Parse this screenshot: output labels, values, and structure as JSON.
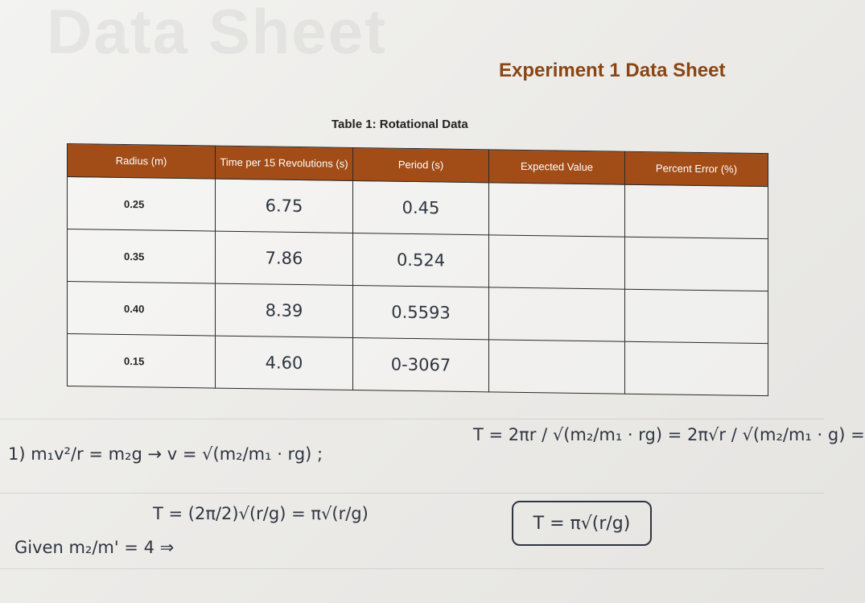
{
  "header": {
    "watermark": "Data Sheet",
    "title": "Experiment 1 Data Sheet"
  },
  "table": {
    "caption": "Table 1: Rotational Data",
    "headers": [
      "Radius (m)",
      "Time per 15 Revolutions (s)",
      "Period (s)",
      "Expected Value",
      "Percent Error (%)"
    ],
    "rows": [
      {
        "radius": "0.25",
        "time": "6.75",
        "period": "0.45",
        "expected": "",
        "error": ""
      },
      {
        "radius": "0.35",
        "time": "7.86",
        "period": "0.524",
        "expected": "",
        "error": ""
      },
      {
        "radius": "0.40",
        "time": "8.39",
        "period": "0.5593",
        "expected": "",
        "error": ""
      },
      {
        "radius": "0.15",
        "time": "4.60",
        "period": "0-3067",
        "expected": "",
        "error": ""
      }
    ]
  },
  "notes": {
    "line1": "1) m₁v²/r = m₂g  →  v = √(m₂/m₁ · rg)  ;",
    "line2": "T = 2πr / √(m₂/m₁ · rg)  =  2π√r / √(m₂/m₁ · g)  =",
    "given_line": "Given  m₂/m' = 4  ⇒",
    "line3": "T = (2π/2)√(r/g)  =  π√(r/g)",
    "boxed_result": "T = π√(r/g)"
  },
  "colors": {
    "title": "#8b4513",
    "header_bg": "#a24c17",
    "ink": "#2e3540"
  }
}
